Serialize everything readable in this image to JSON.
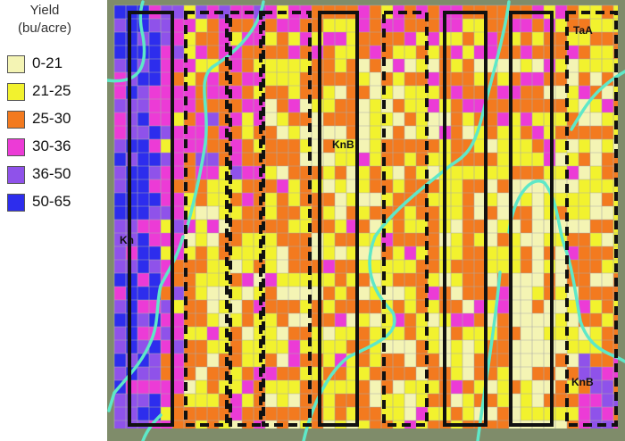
{
  "legend": {
    "title_line1": "Yield",
    "title_line2": "(bu/acre)",
    "classes": [
      {
        "label": "0-21",
        "color": "#f4f4b4"
      },
      {
        "label": "21-25",
        "color": "#f2f22e"
      },
      {
        "label": "25-30",
        "color": "#f37a1f"
      },
      {
        "label": "30-36",
        "color": "#ec3bd6"
      },
      {
        "label": "36-50",
        "color": "#8f52ea"
      },
      {
        "label": "50-65",
        "color": "#2d2ded"
      }
    ]
  },
  "map": {
    "soil_labels": [
      "TaA",
      "KnB",
      "Kn",
      "KnB"
    ],
    "colors": {
      "boundary": "#5ee8c8",
      "strip": "#111111",
      "grid": "#aaaaaa",
      "background": "#7f8c6a"
    }
  }
}
